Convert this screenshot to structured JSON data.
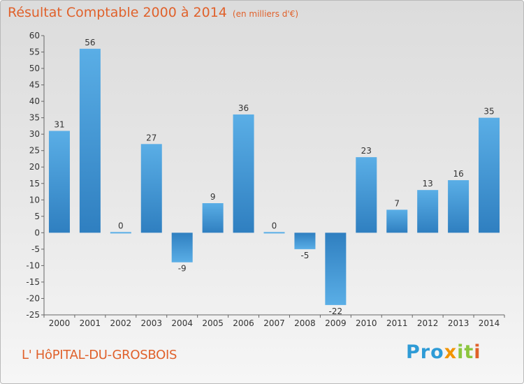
{
  "header": {
    "title": "Résultat Comptable 2000 à 2014",
    "subtitle": "(en milliers d'€)"
  },
  "footer": {
    "commune": "L' HôPITAL-DU-GROSBOIS",
    "logo_text": "Proxiti",
    "logo_colors": [
      "#2e9bd6",
      "#2e9bd6",
      "#2e9bd6",
      "#f29400",
      "#8cc63f",
      "#8cc63f",
      "#e0612b"
    ]
  },
  "chart_data": {
    "type": "bar",
    "categories": [
      "2000",
      "2001",
      "2002",
      "2003",
      "2004",
      "2005",
      "2006",
      "2007",
      "2008",
      "2009",
      "2010",
      "2011",
      "2012",
      "2013",
      "2014"
    ],
    "values": [
      31,
      56,
      0,
      27,
      -9,
      9,
      36,
      0,
      -5,
      -22,
      23,
      7,
      13,
      16,
      35
    ],
    "ylim": [
      -25,
      60
    ],
    "yticks": [
      60,
      55,
      50,
      45,
      40,
      35,
      30,
      25,
      20,
      15,
      10,
      5,
      0,
      -5,
      -10,
      -15,
      -20,
      -25
    ],
    "grid": false,
    "data_labels": true,
    "colors": {
      "bar_light": "#5aaee6",
      "bar_dark": "#2f7fc0",
      "axis": "#666666"
    }
  }
}
